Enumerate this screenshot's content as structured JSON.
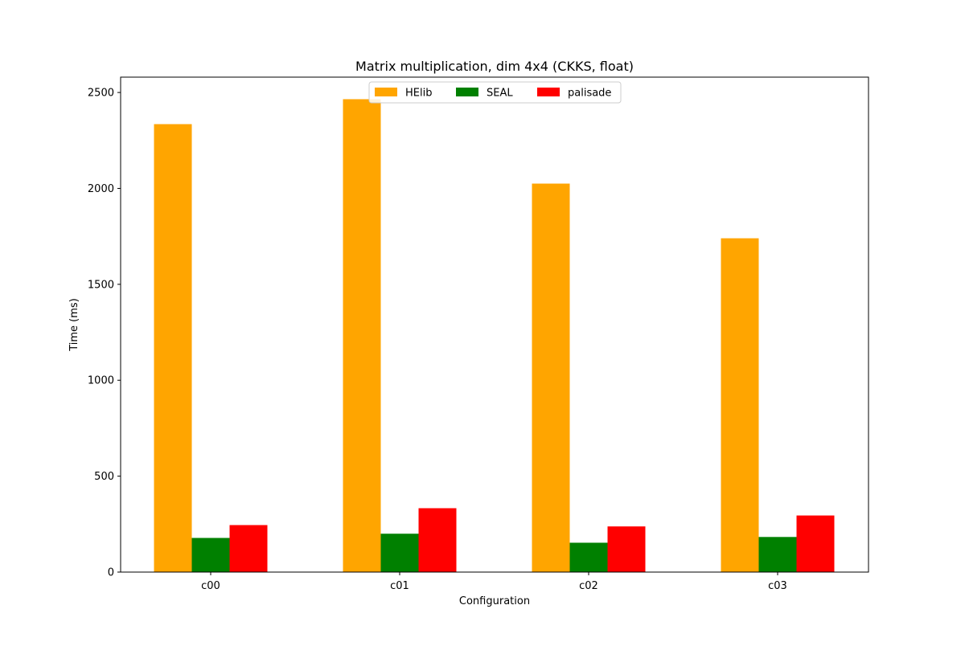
{
  "chart_data": {
    "type": "bar",
    "title": "Matrix multiplication, dim 4x4 (CKKS, float)",
    "xlabel": "Configuration",
    "ylabel": "Time (ms)",
    "categories": [
      "c00",
      "c01",
      "c02",
      "c03"
    ],
    "series": [
      {
        "name": "HElib",
        "color": "#ffa500",
        "values": [
          2335,
          2465,
          2025,
          1740
        ]
      },
      {
        "name": "SEAL",
        "color": "#008000",
        "values": [
          178,
          200,
          153,
          183
        ]
      },
      {
        "name": "palisade",
        "color": "#ff0000",
        "values": [
          245,
          333,
          238,
          295
        ]
      }
    ],
    "ylim": [
      0,
      2580
    ],
    "yticks": [
      0,
      500,
      1000,
      1500,
      2000,
      2500
    ],
    "grid": false,
    "legend_position": "top-center"
  }
}
